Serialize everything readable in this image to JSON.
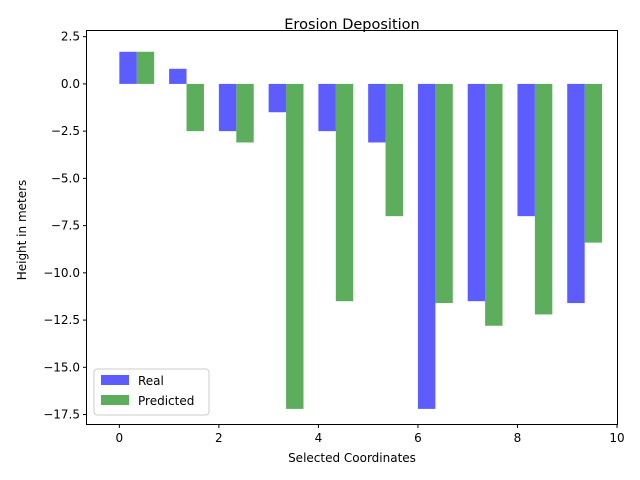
{
  "chart_data": {
    "type": "bar",
    "title": "Erosion Deposition",
    "xlabel": "Selected Coordinates",
    "ylabel": "Height in meters",
    "xlim": [
      -0.65,
      10.0
    ],
    "ylim": [
      -18.0,
      2.8
    ],
    "x_ticks": [
      0,
      2,
      4,
      6,
      8,
      10
    ],
    "x_tick_labels": [
      "0",
      "2",
      "4",
      "6",
      "8",
      "10"
    ],
    "y_ticks": [
      2.5,
      0,
      -2.5,
      -5,
      -7.5,
      -10,
      -12.5,
      -15,
      -17.5
    ],
    "y_tick_labels": [
      "2.5",
      "0.0",
      "−2.5",
      "−5.0",
      "−7.5",
      "−10.0",
      "−12.5",
      "−15.0",
      "−17.5"
    ],
    "x": [
      0,
      1,
      2,
      3,
      4,
      5,
      6,
      7,
      8,
      9
    ],
    "bar_width": 0.35,
    "grid": false,
    "legend_position": "lower-left",
    "series": [
      {
        "name": "Real",
        "color": "#3333ff",
        "values": [
          1.7,
          0.8,
          -2.5,
          -1.5,
          -2.5,
          -3.1,
          -17.2,
          -11.5,
          -7.0,
          -11.6
        ]
      },
      {
        "name": "Predicted",
        "color": "#339933",
        "values": [
          1.7,
          -2.5,
          -3.1,
          -17.2,
          -11.5,
          -7.0,
          -11.6,
          -12.8,
          -12.2,
          -8.4
        ]
      }
    ]
  }
}
